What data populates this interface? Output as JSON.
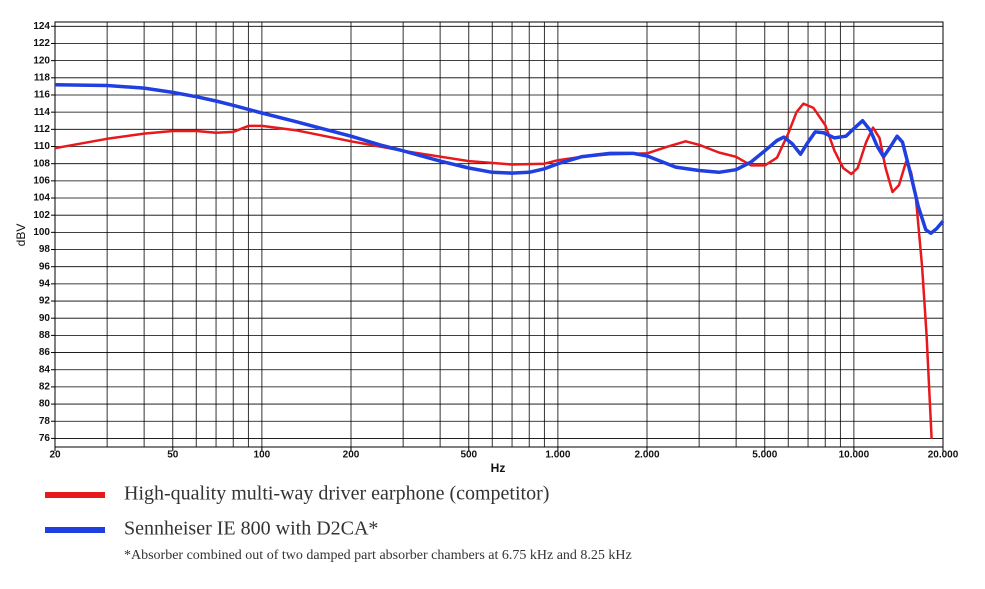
{
  "chart_data": {
    "type": "line",
    "xlabel": "Hz",
    "ylabel": "dBV",
    "xscale": "log",
    "grid": true,
    "xlim": [
      20,
      20000
    ],
    "ylim": [
      75,
      124.5
    ],
    "xticks": [
      20,
      50,
      100,
      200,
      500,
      {
        "value": 1000,
        "label": "1.000"
      },
      {
        "value": 2000,
        "label": "2.000"
      },
      {
        "value": 5000,
        "label": "5.000"
      },
      {
        "value": 10000,
        "label": "10.000"
      },
      {
        "value": 20000,
        "label": "20.000"
      }
    ],
    "xgrid": [
      20,
      30,
      40,
      50,
      60,
      70,
      80,
      90,
      100,
      200,
      300,
      400,
      500,
      600,
      700,
      800,
      900,
      1000,
      2000,
      3000,
      4000,
      5000,
      6000,
      7000,
      8000,
      9000,
      10000,
      20000
    ],
    "yticks": [
      76,
      78,
      80,
      82,
      84,
      86,
      88,
      90,
      92,
      94,
      96,
      98,
      100,
      102,
      104,
      106,
      108,
      110,
      112,
      114,
      116,
      118,
      120,
      122,
      124
    ],
    "series": [
      {
        "name": "High-quality multi-way driver earphone (competitor)",
        "color": "#e8191c",
        "x": [
          20,
          30,
          40,
          50,
          60,
          70,
          80,
          90,
          100,
          130,
          200,
          300,
          500,
          700,
          900,
          1000,
          1200,
          1500,
          2000,
          2300,
          2700,
          3000,
          3500,
          4000,
          4500,
          5000,
          5500,
          6000,
          6400,
          6750,
          7300,
          8000,
          8600,
          9200,
          9800,
          10300,
          11000,
          11600,
          12200,
          12800,
          13500,
          14200,
          15000,
          15600,
          16200,
          17000,
          17600,
          18300
        ],
        "values": [
          109.8,
          110.9,
          111.5,
          111.8,
          111.8,
          111.6,
          111.7,
          112.4,
          112.4,
          111.9,
          110.6,
          109.5,
          108.3,
          107.9,
          108,
          108.4,
          108.8,
          109.1,
          109.2,
          109.9,
          110.6,
          110.2,
          109.3,
          108.8,
          107.8,
          107.8,
          108.7,
          111.5,
          114,
          115,
          114.5,
          112.5,
          109.5,
          107.5,
          106.8,
          107.5,
          110.5,
          112.2,
          111,
          107.5,
          104.7,
          105.5,
          108.2,
          107,
          104,
          96,
          88,
          76
        ]
      },
      {
        "name": "Sennheiser IE 800 with D2CA*",
        "color": "#1f3fe0",
        "x": [
          20,
          30,
          40,
          50,
          60,
          70,
          80,
          100,
          130,
          200,
          250,
          300,
          400,
          500,
          600,
          700,
          800,
          900,
          1000,
          1200,
          1500,
          1800,
          2000,
          2500,
          3000,
          3500,
          4000,
          4500,
          5000,
          5500,
          5800,
          6200,
          6600,
          7000,
          7400,
          7900,
          8600,
          9400,
          10000,
          10700,
          11400,
          12000,
          12600,
          13300,
          14000,
          14600,
          15500,
          16500,
          17500,
          18200,
          19000,
          20000
        ],
        "values": [
          117.2,
          117.1,
          116.8,
          116.3,
          115.8,
          115.3,
          114.8,
          113.9,
          112.9,
          111.2,
          110.2,
          109.5,
          108.3,
          107.5,
          107,
          106.9,
          107,
          107.4,
          108,
          108.8,
          109.2,
          109.2,
          108.9,
          107.6,
          107.2,
          107,
          107.3,
          108.2,
          109.5,
          110.7,
          111.1,
          110.3,
          109.1,
          110.5,
          111.7,
          111.6,
          111,
          111.2,
          112.1,
          113,
          111.8,
          110,
          108.8,
          110,
          111.2,
          110.5,
          107,
          103,
          100.3,
          99.9,
          100.4,
          101.3
        ]
      }
    ],
    "footnote": "*Absorber combined out of two damped part absorber chambers at 6.75 kHz and 8.25 kHz"
  }
}
